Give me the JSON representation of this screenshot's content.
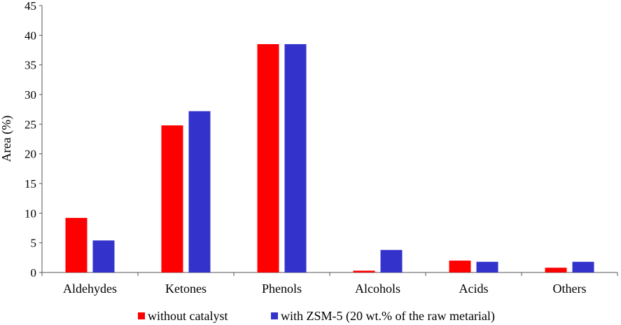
{
  "chart_data": {
    "type": "bar",
    "title": "",
    "xlabel": "",
    "ylabel": "Area (%)",
    "ylim": [
      0,
      45
    ],
    "yticks": [
      0,
      5,
      10,
      15,
      20,
      25,
      30,
      35,
      40,
      45
    ],
    "grid": false,
    "legend_position": "bottom",
    "categories": [
      "Aldehydes",
      "Ketones",
      "Phenols",
      "Alcohols",
      "Acids",
      "Others"
    ],
    "series": [
      {
        "name": "without catalyst",
        "color": "#ff0000",
        "values": [
          9.2,
          24.8,
          38.5,
          0.3,
          2.0,
          0.8
        ]
      },
      {
        "name": "with ZSM-5 (20 wt.% of the raw metarial)",
        "color": "#3333cc",
        "values": [
          5.4,
          27.2,
          38.5,
          3.8,
          1.8,
          1.8
        ]
      }
    ]
  }
}
